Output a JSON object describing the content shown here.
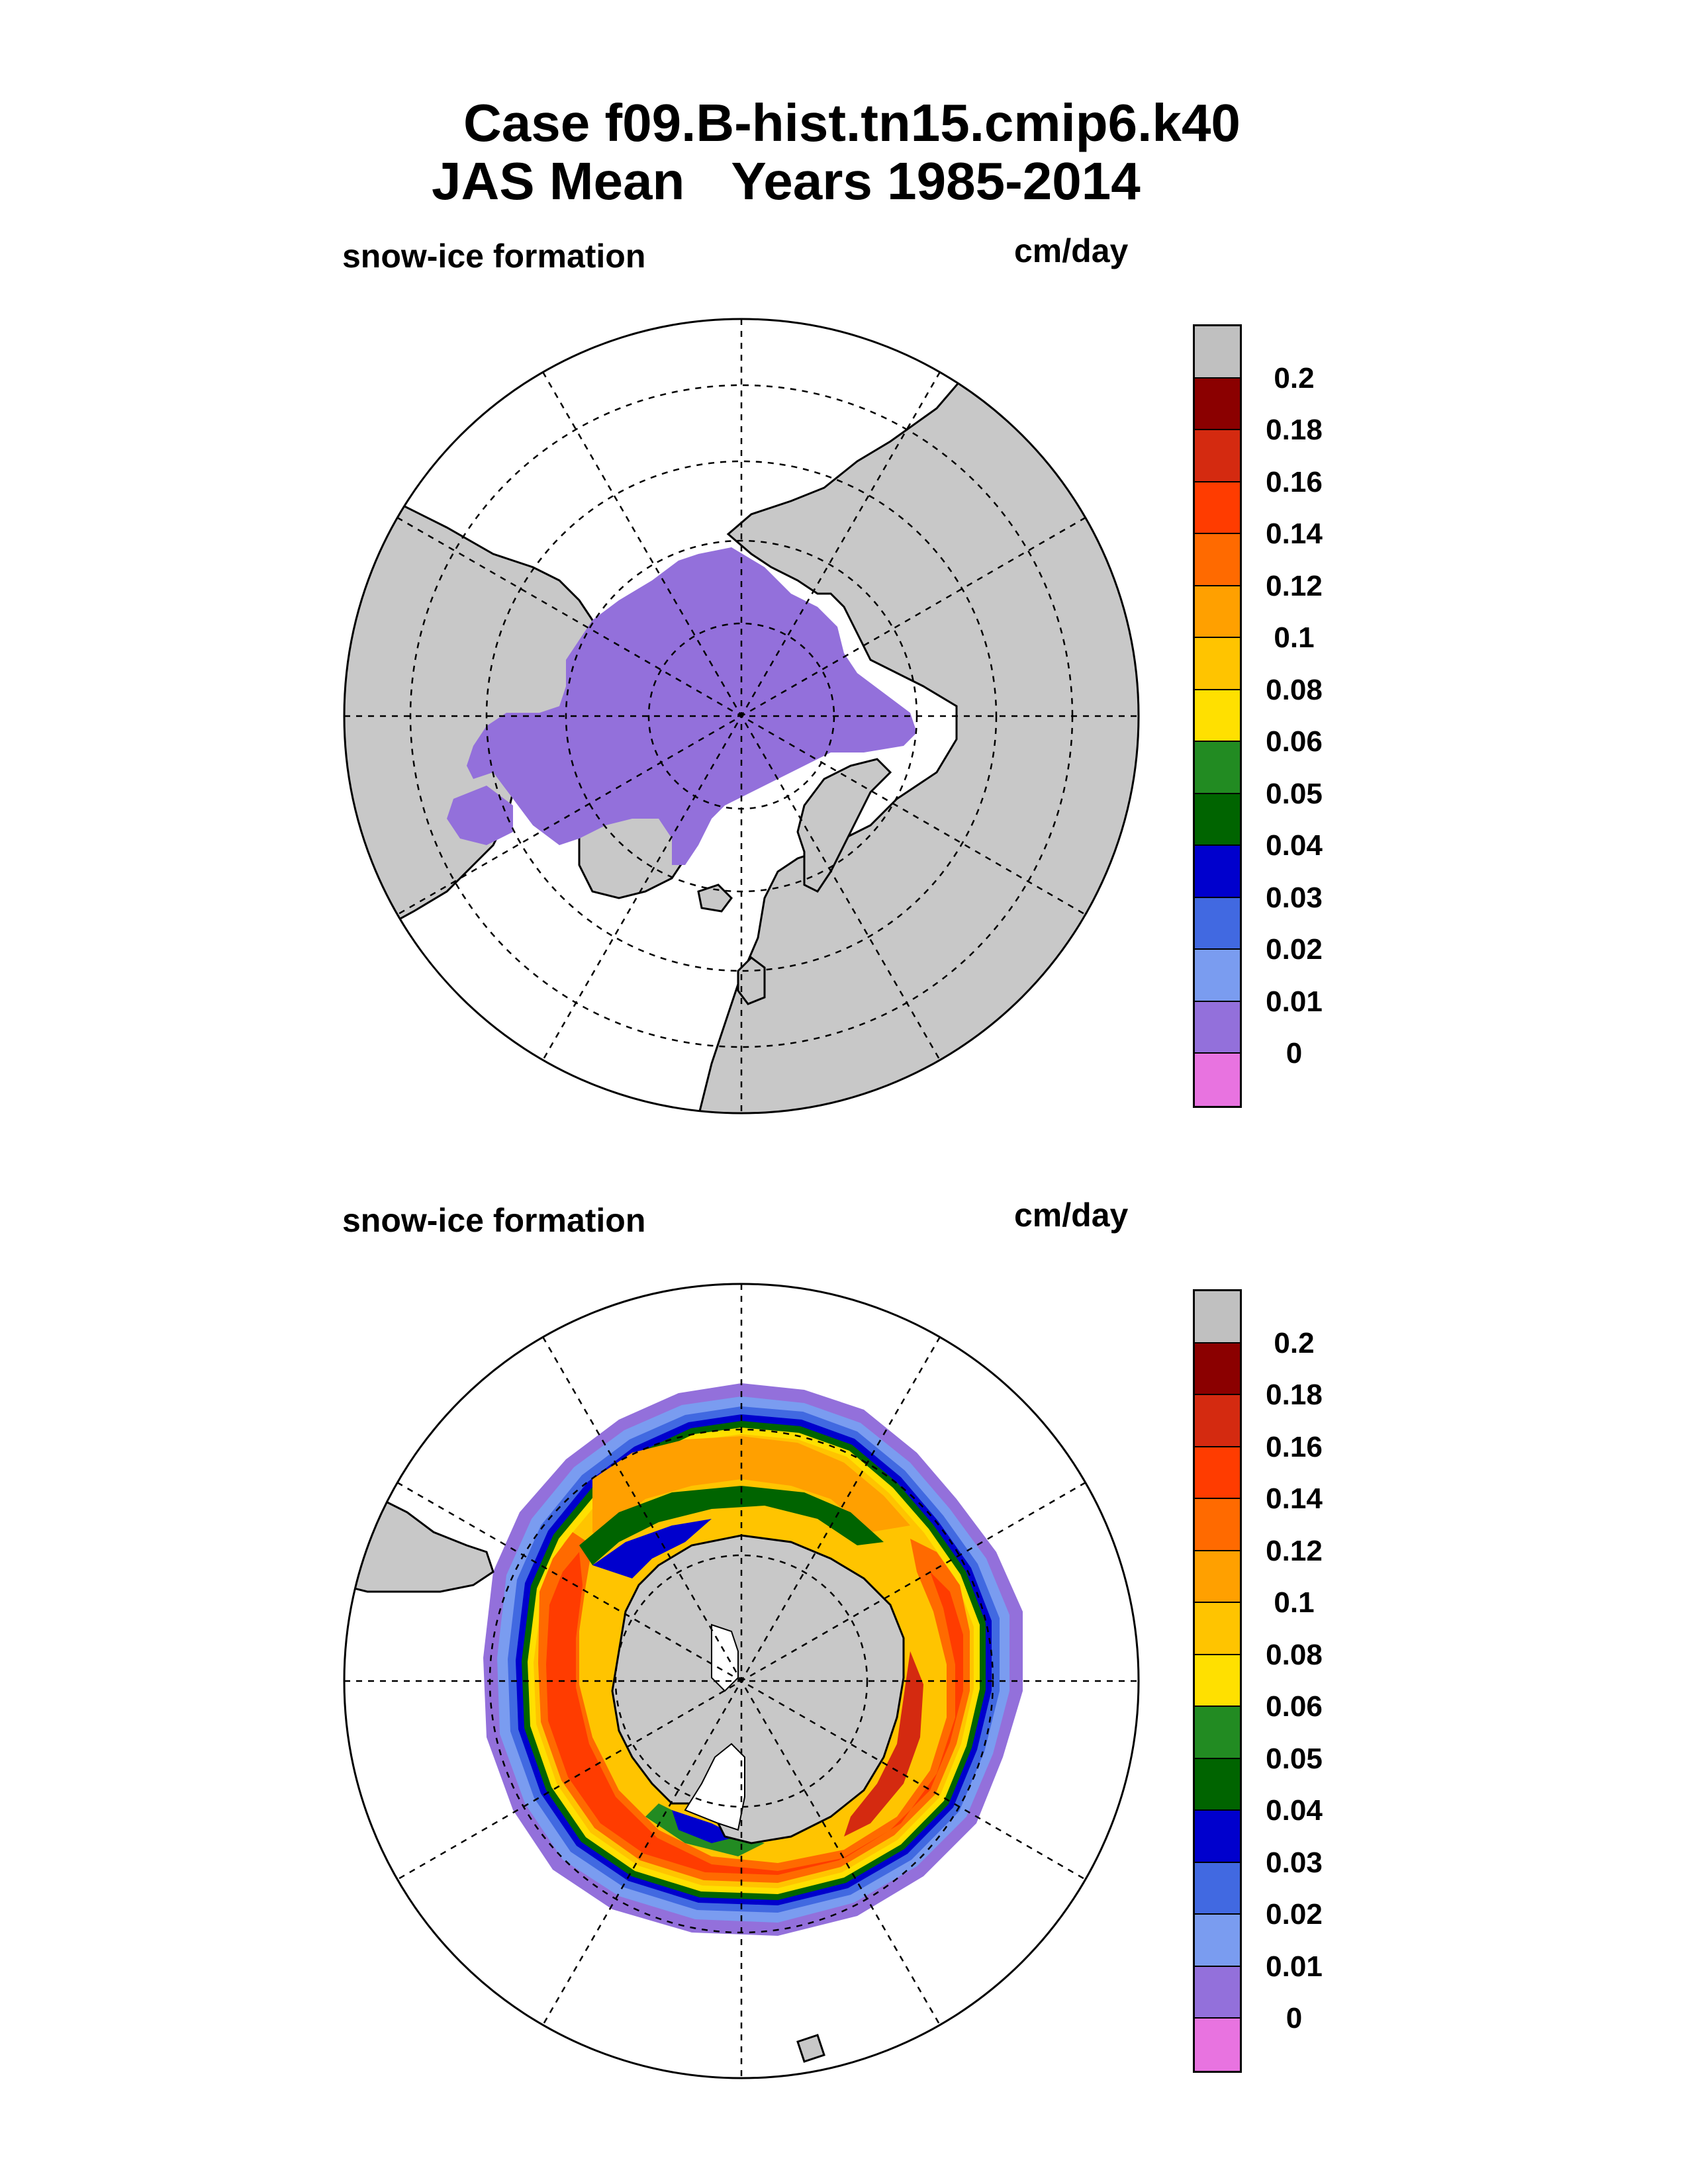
{
  "title": {
    "line1": "Case f09.B-hist.tn15.cmip6.k40",
    "line2_season": "JAS Mean",
    "line2_years": "Years 1985-2014"
  },
  "colors": {
    "land": "#c8c8c8",
    "background": "#ffffff",
    "levels": [
      "#e873e0",
      "#9370db",
      "#7a9cf0",
      "#4169e1",
      "#0000cd",
      "#006400",
      "#228b22",
      "#ffe000",
      "#ffc400",
      "#ffa000",
      "#ff6a00",
      "#ff3c00",
      "#d42a10",
      "#8b0000",
      "#c0c0c0"
    ]
  },
  "panels": [
    {
      "id": "north",
      "variable_label": "snow-ice formation",
      "units_label": "cm/day",
      "hemisphere": "Northern"
    },
    {
      "id": "south",
      "variable_label": "snow-ice formation",
      "units_label": "cm/day",
      "hemisphere": "Southern"
    }
  ],
  "colorbar": {
    "labels": [
      "0.2",
      "0.18",
      "0.16",
      "0.14",
      "0.12",
      "0.1",
      "0.08",
      "0.06",
      "0.05",
      "0.04",
      "0.03",
      "0.02",
      "0.01",
      "0"
    ]
  }
}
